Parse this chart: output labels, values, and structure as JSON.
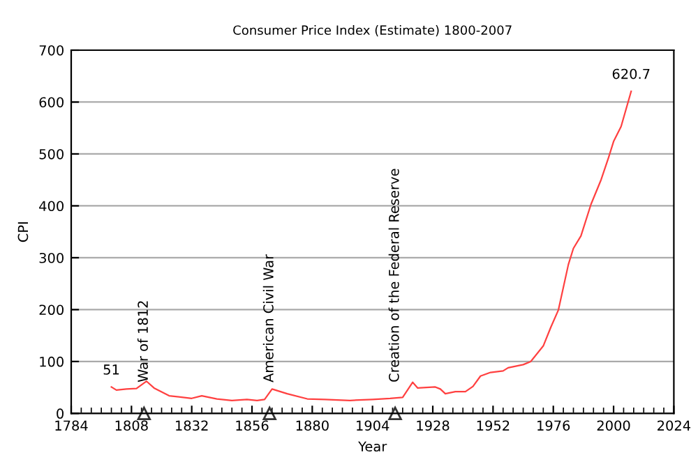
{
  "chart_data": {
    "type": "line",
    "title": "Consumer Price Index (Estimate) 1800-2007",
    "xlabel": "Year",
    "ylabel": "CPI",
    "x": [
      1800,
      1802,
      1806,
      1810,
      1814,
      1817,
      1823,
      1832,
      1836,
      1842,
      1848,
      1854,
      1858,
      1861,
      1864,
      1870,
      1878,
      1885,
      1895,
      1904,
      1911,
      1916,
      1920,
      1922,
      1929,
      1931,
      1933,
      1937,
      1941,
      1944,
      1947,
      1951,
      1956,
      1958,
      1964,
      1967,
      1972,
      1975,
      1978,
      1982,
      1984,
      1987,
      1991,
      1995,
      1998,
      2000,
      2003,
      2007
    ],
    "series": [
      {
        "color": "#ff4040",
        "values": [
          51,
          45,
          47,
          48,
          62,
          49,
          34,
          29,
          34,
          28,
          25,
          27,
          25,
          27,
          47,
          38,
          28,
          27,
          25,
          27,
          29,
          31,
          60,
          49,
          51,
          47,
          38,
          42,
          42,
          52,
          72,
          79,
          82,
          88,
          94,
          100,
          130,
          166,
          199,
          287,
          318,
          342,
          403,
          450,
          493,
          524,
          553,
          620.7
        ]
      }
    ],
    "annotations": [
      {
        "text": "51",
        "x": 1800,
        "y": 51
      },
      {
        "text": "620.7",
        "x": 2007,
        "y": 620.7
      },
      {
        "text": "War of 1812",
        "x": 1813,
        "y": 0
      },
      {
        "text": "American Civil War",
        "x": 1863,
        "y": 0
      },
      {
        "text": "Creation of the Federal Reserve",
        "x": 1913,
        "y": 0
      }
    ],
    "xlim": [
      1784,
      2024
    ],
    "xticks": [
      1784,
      1808,
      1832,
      1856,
      1880,
      1904,
      1928,
      1952,
      1976,
      2000,
      2024
    ],
    "ylim": [
      0,
      700
    ],
    "yticks": [
      0,
      100,
      200,
      300,
      400,
      500,
      600,
      700
    ],
    "grid": "y",
    "legend": false,
    "marker": "none",
    "line_style": "solid"
  }
}
